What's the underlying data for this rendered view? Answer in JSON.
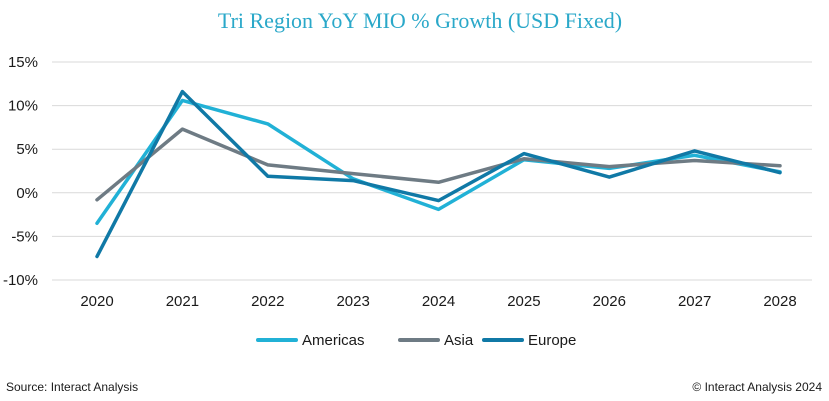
{
  "chart_data": {
    "type": "line",
    "title": "Tri Region YoY MIO % Growth (USD Fixed)",
    "x": [
      "2020",
      "2021",
      "2022",
      "2023",
      "2024",
      "2025",
      "2026",
      "2027",
      "2028"
    ],
    "ylim": [
      -10,
      15
    ],
    "yticks": [
      -10,
      -5,
      0,
      5,
      10,
      15
    ],
    "ytick_labels": [
      "-10%",
      "-5%",
      "0%",
      "5%",
      "10%",
      "15%"
    ],
    "grid": true,
    "legend": "bottom",
    "series": [
      {
        "name": "Americas",
        "color": "#21b1d6",
        "values": [
          -3.5,
          10.6,
          7.9,
          1.6,
          -1.9,
          3.8,
          2.8,
          4.3,
          2.4
        ]
      },
      {
        "name": "Asia",
        "color": "#6e7b84",
        "values": [
          -0.8,
          7.3,
          3.2,
          2.2,
          1.2,
          3.9,
          3.0,
          3.7,
          3.1
        ]
      },
      {
        "name": "Europe",
        "color": "#1079a6",
        "values": [
          -7.3,
          11.6,
          1.9,
          1.4,
          -0.9,
          4.5,
          1.8,
          4.8,
          2.3
        ]
      }
    ]
  },
  "footer": {
    "source": "Source: Interact Analysis",
    "copyright": "© Interact Analysis 2024"
  }
}
